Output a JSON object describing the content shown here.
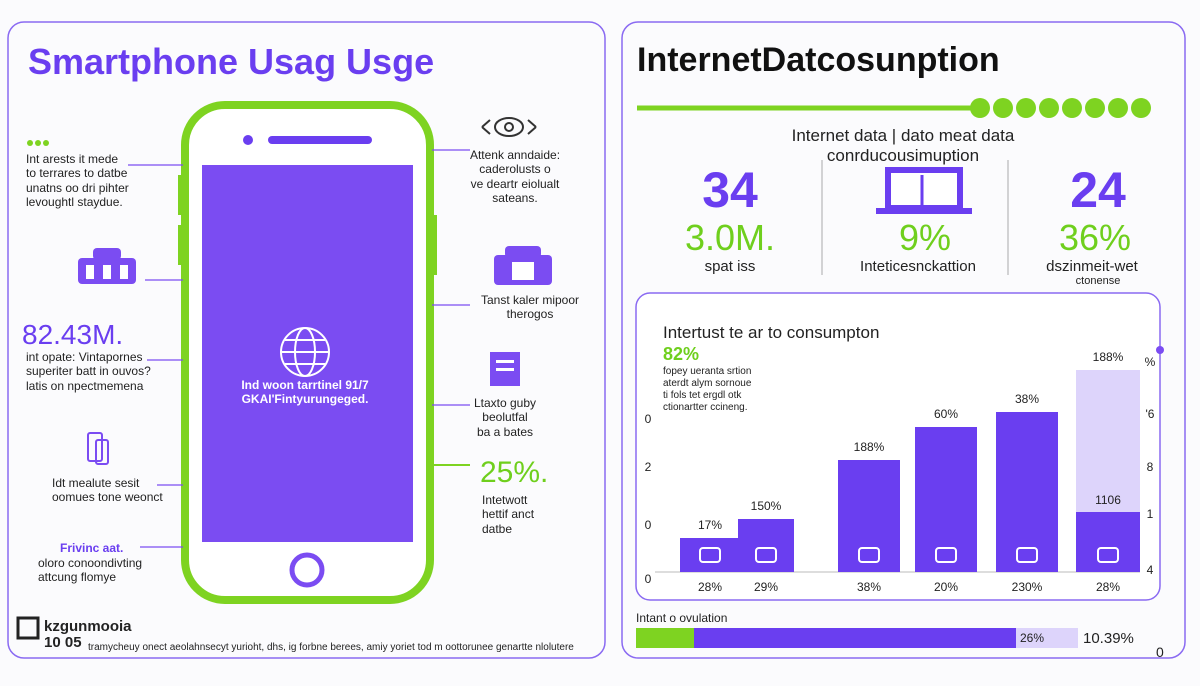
{
  "left": {
    "title": "Smartphone Usag Usge",
    "notes": [
      "Int arests it mede\nto terrares to datbe\nunatns oo dri pihter\nlevoughtl staydue.",
      "int opate: Vintapornes\nsuperiter batt in ouvos?\nlatis on npectmemena",
      "Idt mealute sesit\noomues tone weonct",
      "oloro conoondivting\nattcung flomye"
    ],
    "big_stat": "82.43M.",
    "note_heading": "Frivinc aat.",
    "right_notes": [
      "Attenk anndaide:\ncaderolusts o\nve deartr eiolualt\nsateans.",
      "Tanst kaler mipoor\ntherogos",
      "Ltaxto guby\nbeolutfal\nba a bates",
      "Intetwott\nhettif anct\ndatbe"
    ],
    "right_stat": "25%.",
    "phone_text": "Ind woon tarrtinel 91/7\nGKAI'Fintyurungeged.",
    "footer_logo": "kzgunmooia",
    "footer_code": "10 05",
    "footer_text": "tramycheuy onect aeolahnsecyt yurioht, dhs, ig forbne berees, amiy yoriet tod m oottorunee genartte nlolutere"
  },
  "right": {
    "title": "InternetDatcosunption",
    "subtitle": "Internet data | dato meat data conrducousimuption",
    "stats": [
      {
        "top": "34",
        "value": "3.0M.",
        "label": "spat iss"
      },
      {
        "value": "9%",
        "label": "Inteticesnckattion"
      },
      {
        "top": "24",
        "value": "36%",
        "label": "dszinmeit-wet",
        "sublabel": "ctonense"
      }
    ],
    "card": {
      "title": "Intertust te ar to consumpton",
      "stat": "82%",
      "text": "fopey ueranta srtion\naterdt alym sornoue\nti fols tet ergdl otk\nctionartter ccineng.",
      "left_axis": [
        "0",
        "2",
        "0",
        "0"
      ],
      "right_axis": [
        "%",
        "'6",
        "8",
        "1",
        "4"
      ],
      "top_labels": [
        "17%",
        "150%",
        "188%",
        "60%",
        "38%",
        "188%"
      ],
      "inner_label": "1106",
      "bottom_labels": [
        "28%",
        "29%",
        "38%",
        "20%",
        "230%",
        "28%"
      ]
    },
    "progress": {
      "label": "Intant o ovulation",
      "value": "26%",
      "total": "10.39%",
      "corner": "0"
    }
  }
}
